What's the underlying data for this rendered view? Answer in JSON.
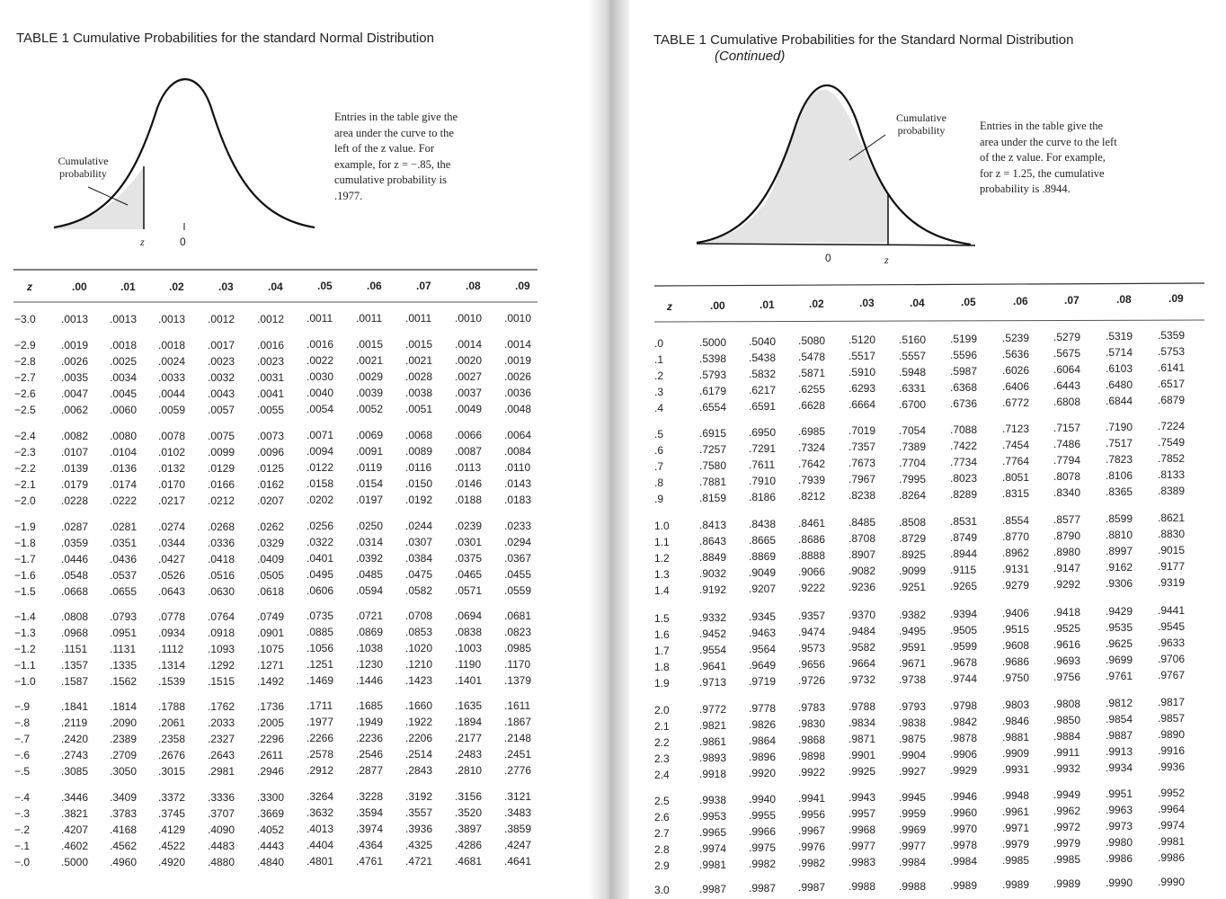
{
  "left": {
    "title": "TABLE 1 Cumulative Probabilities for the standard Normal Distribution",
    "figure": {
      "label": "Cumulative probability",
      "z": "z",
      "zero": "0",
      "note": "Entries in the table give the area under the curve to the left of the z value. For example, for z = −.85, the cumulative probability is .1977."
    },
    "table": {
      "header": [
        "z",
        ".00",
        ".01",
        ".02",
        ".03",
        ".04",
        ".05",
        ".06",
        ".07",
        ".08",
        ".09"
      ],
      "groups": [
        [
          [
            "−3.0",
            ".0013",
            ".0013",
            ".0013",
            ".0012",
            ".0012",
            ".0011",
            ".0011",
            ".0011",
            ".0010",
            ".0010"
          ]
        ],
        [
          [
            "−2.9",
            ".0019",
            ".0018",
            ".0018",
            ".0017",
            ".0016",
            ".0016",
            ".0015",
            ".0015",
            ".0014",
            ".0014"
          ],
          [
            "−2.8",
            ".0026",
            ".0025",
            ".0024",
            ".0023",
            ".0023",
            ".0022",
            ".0021",
            ".0021",
            ".0020",
            ".0019"
          ],
          [
            "−2.7",
            ".0035",
            ".0034",
            ".0033",
            ".0032",
            ".0031",
            ".0030",
            ".0029",
            ".0028",
            ".0027",
            ".0026"
          ],
          [
            "−2.6",
            ".0047",
            ".0045",
            ".0044",
            ".0043",
            ".0041",
            ".0040",
            ".0039",
            ".0038",
            ".0037",
            ".0036"
          ],
          [
            "−2.5",
            ".0062",
            ".0060",
            ".0059",
            ".0057",
            ".0055",
            ".0054",
            ".0052",
            ".0051",
            ".0049",
            ".0048"
          ]
        ],
        [
          [
            "−2.4",
            ".0082",
            ".0080",
            ".0078",
            ".0075",
            ".0073",
            ".0071",
            ".0069",
            ".0068",
            ".0066",
            ".0064"
          ],
          [
            "−2.3",
            ".0107",
            ".0104",
            ".0102",
            ".0099",
            ".0096",
            ".0094",
            ".0091",
            ".0089",
            ".0087",
            ".0084"
          ],
          [
            "−2.2",
            ".0139",
            ".0136",
            ".0132",
            ".0129",
            ".0125",
            ".0122",
            ".0119",
            ".0116",
            ".0113",
            ".0110"
          ],
          [
            "−2.1",
            ".0179",
            ".0174",
            ".0170",
            ".0166",
            ".0162",
            ".0158",
            ".0154",
            ".0150",
            ".0146",
            ".0143"
          ],
          [
            "−2.0",
            ".0228",
            ".0222",
            ".0217",
            ".0212",
            ".0207",
            ".0202",
            ".0197",
            ".0192",
            ".0188",
            ".0183"
          ]
        ],
        [
          [
            "−1.9",
            ".0287",
            ".0281",
            ".0274",
            ".0268",
            ".0262",
            ".0256",
            ".0250",
            ".0244",
            ".0239",
            ".0233"
          ],
          [
            "−1.8",
            ".0359",
            ".0351",
            ".0344",
            ".0336",
            ".0329",
            ".0322",
            ".0314",
            ".0307",
            ".0301",
            ".0294"
          ],
          [
            "−1.7",
            ".0446",
            ".0436",
            ".0427",
            ".0418",
            ".0409",
            ".0401",
            ".0392",
            ".0384",
            ".0375",
            ".0367"
          ],
          [
            "−1.6",
            ".0548",
            ".0537",
            ".0526",
            ".0516",
            ".0505",
            ".0495",
            ".0485",
            ".0475",
            ".0465",
            ".0455"
          ],
          [
            "−1.5",
            ".0668",
            ".0655",
            ".0643",
            ".0630",
            ".0618",
            ".0606",
            ".0594",
            ".0582",
            ".0571",
            ".0559"
          ]
        ],
        [
          [
            "−1.4",
            ".0808",
            ".0793",
            ".0778",
            ".0764",
            ".0749",
            ".0735",
            ".0721",
            ".0708",
            ".0694",
            ".0681"
          ],
          [
            "−1.3",
            ".0968",
            ".0951",
            ".0934",
            ".0918",
            ".0901",
            ".0885",
            ".0869",
            ".0853",
            ".0838",
            ".0823"
          ],
          [
            "−1.2",
            ".1151",
            ".1131",
            ".1112",
            ".1093",
            ".1075",
            ".1056",
            ".1038",
            ".1020",
            ".1003",
            ".0985"
          ],
          [
            "−1.1",
            ".1357",
            ".1335",
            ".1314",
            ".1292",
            ".1271",
            ".1251",
            ".1230",
            ".1210",
            ".1190",
            ".1170"
          ],
          [
            "−1.0",
            ".1587",
            ".1562",
            ".1539",
            ".1515",
            ".1492",
            ".1469",
            ".1446",
            ".1423",
            ".1401",
            ".1379"
          ]
        ],
        [
          [
            "−.9",
            ".1841",
            ".1814",
            ".1788",
            ".1762",
            ".1736",
            ".1711",
            ".1685",
            ".1660",
            ".1635",
            ".1611"
          ],
          [
            "−.8",
            ".2119",
            ".2090",
            ".2061",
            ".2033",
            ".2005",
            ".1977",
            ".1949",
            ".1922",
            ".1894",
            ".1867"
          ],
          [
            "−.7",
            ".2420",
            ".2389",
            ".2358",
            ".2327",
            ".2296",
            ".2266",
            ".2236",
            ".2206",
            ".2177",
            ".2148"
          ],
          [
            "−.6",
            ".2743",
            ".2709",
            ".2676",
            ".2643",
            ".2611",
            ".2578",
            ".2546",
            ".2514",
            ".2483",
            ".2451"
          ],
          [
            "−.5",
            ".3085",
            ".3050",
            ".3015",
            ".2981",
            ".2946",
            ".2912",
            ".2877",
            ".2843",
            ".2810",
            ".2776"
          ]
        ],
        [
          [
            "−.4",
            ".3446",
            ".3409",
            ".3372",
            ".3336",
            ".3300",
            ".3264",
            ".3228",
            ".3192",
            ".3156",
            ".3121"
          ],
          [
            "−.3",
            ".3821",
            ".3783",
            ".3745",
            ".3707",
            ".3669",
            ".3632",
            ".3594",
            ".3557",
            ".3520",
            ".3483"
          ],
          [
            "−.2",
            ".4207",
            ".4168",
            ".4129",
            ".4090",
            ".4052",
            ".4013",
            ".3974",
            ".3936",
            ".3897",
            ".3859"
          ],
          [
            "−.1",
            ".4602",
            ".4562",
            ".4522",
            ".4483",
            ".4443",
            ".4404",
            ".4364",
            ".4325",
            ".4286",
            ".4247"
          ],
          [
            "−.0",
            ".5000",
            ".4960",
            ".4920",
            ".4880",
            ".4840",
            ".4801",
            ".4761",
            ".4721",
            ".4681",
            ".4641"
          ]
        ]
      ]
    }
  },
  "right": {
    "title": "TABLE 1 Cumulative Probabilities for the Standard Normal Distribution",
    "subtitle": "(Continued)",
    "figure": {
      "label": "Cumulative probability",
      "z": "z",
      "zero": "0",
      "note": "Entries in the table give the area under the curve to the left of the z value. For example, for z = 1.25, the cumulative probability is .8944."
    },
    "table": {
      "header": [
        "z",
        ".00",
        ".01",
        ".02",
        ".03",
        ".04",
        ".05",
        ".06",
        ".07",
        ".08",
        ".09"
      ],
      "groups": [
        [
          [
            ".0",
            ".5000",
            ".5040",
            ".5080",
            ".5120",
            ".5160",
            ".5199",
            ".5239",
            ".5279",
            ".5319",
            ".5359"
          ],
          [
            ".1",
            ".5398",
            ".5438",
            ".5478",
            ".5517",
            ".5557",
            ".5596",
            ".5636",
            ".5675",
            ".5714",
            ".5753"
          ],
          [
            ".2",
            ".5793",
            ".5832",
            ".5871",
            ".5910",
            ".5948",
            ".5987",
            ".6026",
            ".6064",
            ".6103",
            ".6141"
          ],
          [
            ".3",
            ".6179",
            ".6217",
            ".6255",
            ".6293",
            ".6331",
            ".6368",
            ".6406",
            ".6443",
            ".6480",
            ".6517"
          ],
          [
            ".4",
            ".6554",
            ".6591",
            ".6628",
            ".6664",
            ".6700",
            ".6736",
            ".6772",
            ".6808",
            ".6844",
            ".6879"
          ]
        ],
        [
          [
            ".5",
            ".6915",
            ".6950",
            ".6985",
            ".7019",
            ".7054",
            ".7088",
            ".7123",
            ".7157",
            ".7190",
            ".7224"
          ],
          [
            ".6",
            ".7257",
            ".7291",
            ".7324",
            ".7357",
            ".7389",
            ".7422",
            ".7454",
            ".7486",
            ".7517",
            ".7549"
          ],
          [
            ".7",
            ".7580",
            ".7611",
            ".7642",
            ".7673",
            ".7704",
            ".7734",
            ".7764",
            ".7794",
            ".7823",
            ".7852"
          ],
          [
            ".8",
            ".7881",
            ".7910",
            ".7939",
            ".7967",
            ".7995",
            ".8023",
            ".8051",
            ".8078",
            ".8106",
            ".8133"
          ],
          [
            ".9",
            ".8159",
            ".8186",
            ".8212",
            ".8238",
            ".8264",
            ".8289",
            ".8315",
            ".8340",
            ".8365",
            ".8389"
          ]
        ],
        [
          [
            "1.0",
            ".8413",
            ".8438",
            ".8461",
            ".8485",
            ".8508",
            ".8531",
            ".8554",
            ".8577",
            ".8599",
            ".8621"
          ],
          [
            "1.1",
            ".8643",
            ".8665",
            ".8686",
            ".8708",
            ".8729",
            ".8749",
            ".8770",
            ".8790",
            ".8810",
            ".8830"
          ],
          [
            "1.2",
            ".8849",
            ".8869",
            ".8888",
            ".8907",
            ".8925",
            ".8944",
            ".8962",
            ".8980",
            ".8997",
            ".9015"
          ],
          [
            "1.3",
            ".9032",
            ".9049",
            ".9066",
            ".9082",
            ".9099",
            ".9115",
            ".9131",
            ".9147",
            ".9162",
            ".9177"
          ],
          [
            "1.4",
            ".9192",
            ".9207",
            ".9222",
            ".9236",
            ".9251",
            ".9265",
            ".9279",
            ".9292",
            ".9306",
            ".9319"
          ]
        ],
        [
          [
            "1.5",
            ".9332",
            ".9345",
            ".9357",
            ".9370",
            ".9382",
            ".9394",
            ".9406",
            ".9418",
            ".9429",
            ".9441"
          ],
          [
            "1.6",
            ".9452",
            ".9463",
            ".9474",
            ".9484",
            ".9495",
            ".9505",
            ".9515",
            ".9525",
            ".9535",
            ".9545"
          ],
          [
            "1.7",
            ".9554",
            ".9564",
            ".9573",
            ".9582",
            ".9591",
            ".9599",
            ".9608",
            ".9616",
            ".9625",
            ".9633"
          ],
          [
            "1.8",
            ".9641",
            ".9649",
            ".9656",
            ".9664",
            ".9671",
            ".9678",
            ".9686",
            ".9693",
            ".9699",
            ".9706"
          ],
          [
            "1.9",
            ".9713",
            ".9719",
            ".9726",
            ".9732",
            ".9738",
            ".9744",
            ".9750",
            ".9756",
            ".9761",
            ".9767"
          ]
        ],
        [
          [
            "2.0",
            ".9772",
            ".9778",
            ".9783",
            ".9788",
            ".9793",
            ".9798",
            ".9803",
            ".9808",
            ".9812",
            ".9817"
          ],
          [
            "2.1",
            ".9821",
            ".9826",
            ".9830",
            ".9834",
            ".9838",
            ".9842",
            ".9846",
            ".9850",
            ".9854",
            ".9857"
          ],
          [
            "2.2",
            ".9861",
            ".9864",
            ".9868",
            ".9871",
            ".9875",
            ".9878",
            ".9881",
            ".9884",
            ".9887",
            ".9890"
          ],
          [
            "2.3",
            ".9893",
            ".9896",
            ".9898",
            ".9901",
            ".9904",
            ".9906",
            ".9909",
            ".9911",
            ".9913",
            ".9916"
          ],
          [
            "2.4",
            ".9918",
            ".9920",
            ".9922",
            ".9925",
            ".9927",
            ".9929",
            ".9931",
            ".9932",
            ".9934",
            ".9936"
          ]
        ],
        [
          [
            "2.5",
            ".9938",
            ".9940",
            ".9941",
            ".9943",
            ".9945",
            ".9946",
            ".9948",
            ".9949",
            ".9951",
            ".9952"
          ],
          [
            "2.6",
            ".9953",
            ".9955",
            ".9956",
            ".9957",
            ".9959",
            ".9960",
            ".9961",
            ".9962",
            ".9963",
            ".9964"
          ],
          [
            "2.7",
            ".9965",
            ".9966",
            ".9967",
            ".9968",
            ".9969",
            ".9970",
            ".9971",
            ".9972",
            ".9973",
            ".9974"
          ],
          [
            "2.8",
            ".9974",
            ".9975",
            ".9976",
            ".9977",
            ".9977",
            ".9978",
            ".9979",
            ".9979",
            ".9980",
            ".9981"
          ],
          [
            "2.9",
            ".9981",
            ".9982",
            ".9982",
            ".9983",
            ".9984",
            ".9984",
            ".9985",
            ".9985",
            ".9986",
            ".9986"
          ]
        ],
        [
          [
            "3.0",
            ".9987",
            ".9987",
            ".9987",
            ".9988",
            ".9988",
            ".9989",
            ".9989",
            ".9989",
            ".9990",
            ".9990"
          ]
        ]
      ]
    }
  }
}
